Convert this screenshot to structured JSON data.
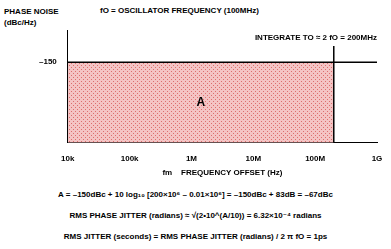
{
  "chart_data": {
    "type": "line",
    "title": "fO = OSCILLATOR FREQUENCY (100MHz)",
    "y_label": [
      "PHASE NOISE",
      "(dBc/Hz)"
    ],
    "x_label": "fm    FREQUENCY OFFSET (Hz)",
    "annotations": [
      "INTEGRATE TO ≈ 2 fO = 200MHz",
      "A"
    ],
    "equations": [
      "A = –150dBc + 10 log₁₀ [200×10⁶ – 0.01×10⁶] = –150dBc + 83dB = –67dBc",
      "RMS PHASE JITTER (radians) ≈ √(2•10^(A/10)) = 6.32×10⁻⁴ radians",
      "RMS JITTER (seconds) = RMS PHASE JITTER (radians) / 2 π fO = 1ps"
    ],
    "log": "x",
    "grid": false,
    "xlim": [
      10000,
      1000000000
    ],
    "xticks": [
      {
        "value": 10000,
        "label": "10k"
      },
      {
        "value": 100000,
        "label": "100k"
      },
      {
        "value": 1000000,
        "label": "1M"
      },
      {
        "value": 10000000,
        "label": "10M"
      },
      {
        "value": 100000000,
        "label": "100M"
      },
      {
        "value": 1000000000,
        "label": "1G"
      }
    ],
    "ylim": [
      -160,
      -146
    ],
    "yticks": [
      {
        "value": -150,
        "label": "–150"
      }
    ],
    "series": [
      {
        "type": "area",
        "color": "#f4c4c4",
        "x": [
          10000,
          200000000
        ],
        "values": [
          -150,
          -150
        ]
      },
      {
        "type": "line",
        "color": "#000000",
        "x": [
          10000,
          1000000000
        ],
        "values": [
          -150,
          -150
        ]
      },
      {
        "type": "line",
        "color": "#000000",
        "x": [
          200000000,
          200000000
        ],
        "values": [
          -160,
          -148
        ]
      }
    ]
  }
}
